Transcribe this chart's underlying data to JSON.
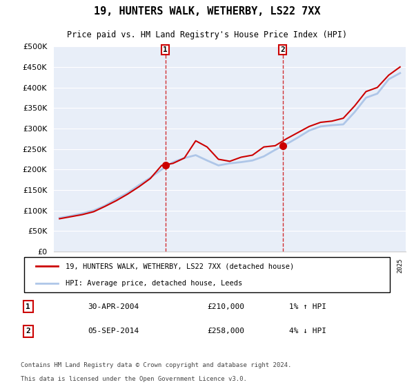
{
  "title": "19, HUNTERS WALK, WETHERBY, LS22 7XX",
  "subtitle": "Price paid vs. HM Land Registry's House Price Index (HPI)",
  "legend_line1": "19, HUNTERS WALK, WETHERBY, LS22 7XX (detached house)",
  "legend_line2": "HPI: Average price, detached house, Leeds",
  "footnote1": "Contains HM Land Registry data © Crown copyright and database right 2024.",
  "footnote2": "This data is licensed under the Open Government Licence v3.0.",
  "sale1_label": "30-APR-2004",
  "sale1_price": "£210,000",
  "sale1_hpi": "1% ↑ HPI",
  "sale1_year": 2004.33,
  "sale1_value": 210000,
  "sale2_label": "05-SEP-2014",
  "sale2_price": "£258,000",
  "sale2_hpi": "4% ↓ HPI",
  "sale2_year": 2014.67,
  "sale2_value": 258000,
  "hpi_color": "#aec6e8",
  "price_color": "#cc0000",
  "sale_dot_color": "#cc0000",
  "marker_box_color": "#cc0000",
  "ylim": [
    0,
    500000
  ],
  "xlim": [
    1994.5,
    2025.5
  ],
  "background_color": "#f0f4fa",
  "plot_bg_color": "#e8eef8",
  "hpi_years": [
    1995,
    1996,
    1997,
    1998,
    1999,
    2000,
    2001,
    2002,
    2003,
    2004,
    2005,
    2006,
    2007,
    2008,
    2009,
    2010,
    2011,
    2012,
    2013,
    2014,
    2015,
    2016,
    2017,
    2018,
    2019,
    2020,
    2021,
    2022,
    2023,
    2024,
    2025
  ],
  "hpi_values": [
    82000,
    87000,
    93000,
    100000,
    112000,
    128000,
    143000,
    162000,
    180000,
    200000,
    218000,
    228000,
    235000,
    222000,
    210000,
    215000,
    218000,
    222000,
    232000,
    248000,
    262000,
    278000,
    295000,
    305000,
    308000,
    310000,
    340000,
    375000,
    385000,
    420000,
    435000
  ],
  "price_years": [
    1995,
    1996,
    1997,
    1998,
    1999,
    2000,
    2001,
    2002,
    2003,
    2004,
    2005,
    2006,
    2007,
    2008,
    2009,
    2010,
    2011,
    2012,
    2013,
    2014,
    2015,
    2016,
    2017,
    2018,
    2019,
    2020,
    2021,
    2022,
    2023,
    2024,
    2025
  ],
  "price_values": [
    80000,
    85000,
    90000,
    97000,
    110000,
    124000,
    140000,
    158000,
    178000,
    210000,
    215000,
    228000,
    270000,
    255000,
    225000,
    220000,
    230000,
    235000,
    255000,
    258000,
    275000,
    290000,
    305000,
    315000,
    318000,
    325000,
    355000,
    390000,
    400000,
    430000,
    450000
  ]
}
